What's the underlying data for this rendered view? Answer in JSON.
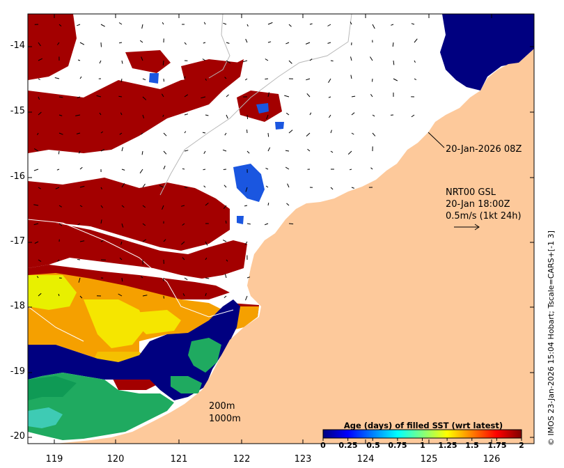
{
  "axes": {
    "y_labels": [
      "-14",
      "-15",
      "-16",
      "-17",
      "-18",
      "-19",
      "-20"
    ],
    "x_labels": [
      "119",
      "120",
      "121",
      "122",
      "123",
      "124",
      "125",
      "126"
    ],
    "lon_range": [
      118.65,
      126.65
    ],
    "lat_range": [
      -20.1,
      -13.5
    ]
  },
  "annotations": {
    "date_label": "20-Jan-2026 08Z",
    "current_title": "NRT00 GSL",
    "current_time": "20-Jan 18:00Z",
    "current_scale": "0.5m/s (1kt 24h)",
    "isobath_200": "200m",
    "isobath_1000": "1000m"
  },
  "legend": {
    "title": "Age (days) of filled SST (wrt latest)",
    "ticks": [
      "0",
      "0.25",
      "0.5",
      "0.75",
      "1",
      "1.25",
      "1.5",
      "1.75",
      "2"
    ],
    "colors": [
      "#00007f",
      "#0000ff",
      "#007fff",
      "#00ffff",
      "#7fff7f",
      "#ffff00",
      "#ff7f00",
      "#ff0000",
      "#7f0000"
    ]
  },
  "credit": "© IMOS 23-Jan-2026 15:04 Hobart; Tscale=CARS+[-1 3]",
  "colors": {
    "land": "#fdc99b",
    "white_nodata": "#ffffff",
    "dark_red": "#a30000",
    "navy": "#000080",
    "green": "#18a050",
    "yellow": "#f5e600",
    "orange": "#f5a000"
  }
}
